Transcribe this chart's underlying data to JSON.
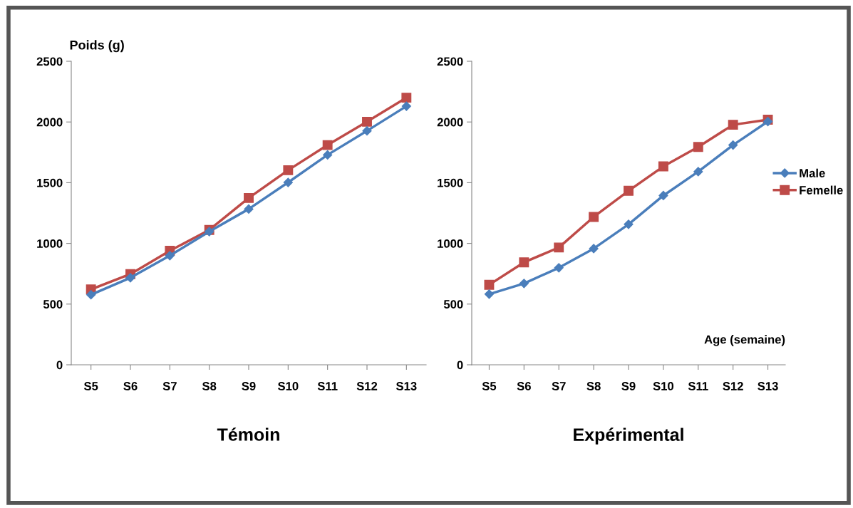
{
  "chart_data": [
    {
      "type": "line",
      "title": "Témoin",
      "ylabel": "Poids (g)",
      "categories": [
        "S5",
        "S6",
        "S7",
        "S8",
        "S9",
        "S10",
        "S11",
        "S12",
        "S13"
      ],
      "ylim": [
        0,
        2500
      ],
      "yticks": [
        0,
        500,
        1000,
        1500,
        2000,
        2500
      ],
      "grid": false,
      "legend": false,
      "series": [
        {
          "color": "#4a7ebb",
          "marker": "diamond",
          "values": [
            577,
            717,
            899,
            1097,
            1283,
            1502,
            1729,
            1927,
            2130
          ]
        },
        {
          "color": "#be4b48",
          "marker": "square",
          "values": [
            621,
            747,
            939,
            1111,
            1374,
            1603,
            1810,
            2002,
            2200
          ]
        }
      ]
    },
    {
      "type": "line",
      "title": "Expérimental",
      "xlabel": "Age (semaine)",
      "categories": [
        "S5",
        "S6",
        "S7",
        "S8",
        "S9",
        "S10",
        "S11",
        "S12",
        "S13"
      ],
      "ylim": [
        0,
        2500
      ],
      "yticks": [
        0,
        500,
        1000,
        1500,
        2000,
        2500
      ],
      "grid": false,
      "legend": "right",
      "series": [
        {
          "name": "Male",
          "color": "#4a7ebb",
          "marker": "diamond",
          "values": [
            582,
            670,
            799,
            957,
            1157,
            1394,
            1591,
            1810,
            2004
          ]
        },
        {
          "name": "Femelle",
          "color": "#be4b48",
          "marker": "square",
          "values": [
            659,
            844,
            966,
            1218,
            1433,
            1634,
            1794,
            1977,
            2019
          ]
        }
      ]
    }
  ]
}
